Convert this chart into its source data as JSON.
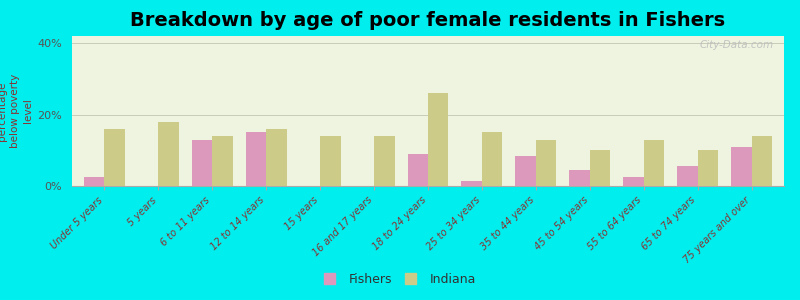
{
  "title": "Breakdown by age of poor female residents in Fishers",
  "ylabel": "percentage\nbelow poverty\nlevel",
  "categories": [
    "Under 5 years",
    "5 years",
    "6 to 11 years",
    "12 to 14 years",
    "15 years",
    "16 and 17 years",
    "18 to 24 years",
    "25 to 34 years",
    "35 to 44 years",
    "45 to 54 years",
    "55 to 64 years",
    "65 to 74 years",
    "75 years and over"
  ],
  "fishers_values": [
    2.5,
    0,
    13,
    15,
    0,
    0,
    9,
    1.5,
    8.5,
    4.5,
    2.5,
    5.5,
    11
  ],
  "indiana_values": [
    16,
    18,
    14,
    16,
    14,
    14,
    26,
    15,
    13,
    10,
    13,
    10,
    14
  ],
  "fishers_color": "#dd99bb",
  "indiana_color": "#cccc88",
  "background_color": "#00eeee",
  "plot_bg_color": "#eef4e0",
  "title_fontsize": 14,
  "ylabel_fontsize": 7.5,
  "ylim": [
    0,
    42
  ],
  "yticks": [
    0,
    20,
    40
  ],
  "ytick_labels": [
    "0%",
    "20%",
    "40%"
  ],
  "bar_width": 0.38,
  "legend_fishers": "Fishers",
  "legend_indiana": "Indiana"
}
